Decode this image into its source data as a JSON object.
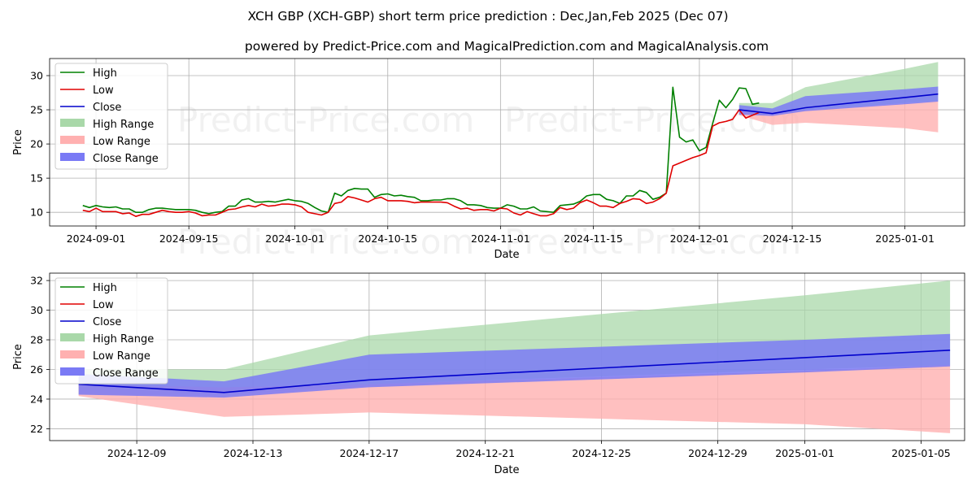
{
  "title": "XCH GBP (XCH-GBP) short term price prediction : Dec,Jan,Feb 2025 (Dec 07)",
  "subtitle": "powered by Predict-Price.com and MagicalPrediction.com and MagicalAnalysis.com",
  "watermark": "Predict-Price.com",
  "colors": {
    "high": "#008000",
    "low": "#e00000",
    "close": "#0000cc",
    "high_range": "#a9d8a9",
    "low_range": "#ffb0b0",
    "close_range": "#7a7af5",
    "grid": "#b0b0b0"
  },
  "legend": [
    "High",
    "Low",
    "Close",
    "High Range",
    "Low Range",
    "Close Range"
  ],
  "chart_data": [
    {
      "type": "line",
      "xlabel": "Date",
      "ylabel": "Price",
      "xlim": [
        "2024-08-25",
        "2025-01-10"
      ],
      "ylim": [
        8,
        32.5
      ],
      "yticks": [
        10,
        15,
        20,
        25,
        30
      ],
      "xticks": [
        {
          "date": "2024-09-01",
          "label": "2024-09-01"
        },
        {
          "date": "2024-09-15",
          "label": "2024-09-15"
        },
        {
          "date": "2024-10-01",
          "label": "2024-10-01"
        },
        {
          "date": "2024-10-15",
          "label": "2024-10-15"
        },
        {
          "date": "2024-11-01",
          "label": "2024-11-01"
        },
        {
          "date": "2024-11-15",
          "label": "2024-11-15"
        },
        {
          "date": "2024-12-01",
          "label": "2024-12-01"
        },
        {
          "date": "2024-12-15",
          "label": "2024-12-15"
        },
        {
          "date": "2025-01-01",
          "label": "2025-01-01"
        }
      ],
      "history_start": "2024-08-30",
      "high": [
        11.0,
        10.7,
        11.0,
        10.8,
        10.7,
        10.8,
        10.5,
        10.5,
        10.0,
        10.0,
        10.4,
        10.6,
        10.6,
        10.5,
        10.4,
        10.4,
        10.4,
        10.3,
        10.0,
        9.8,
        10.0,
        10.1,
        10.9,
        10.9,
        11.8,
        12.0,
        11.5,
        11.5,
        11.6,
        11.5,
        11.7,
        11.9,
        11.7,
        11.6,
        11.3,
        10.7,
        10.2,
        10.0,
        12.8,
        12.4,
        13.2,
        13.5,
        13.4,
        13.4,
        12.2,
        12.6,
        12.7,
        12.4,
        12.5,
        12.3,
        12.2,
        11.7,
        11.7,
        11.8,
        11.8,
        12.0,
        12.0,
        11.7,
        11.1,
        11.1,
        11.0,
        10.7,
        10.6,
        10.6,
        11.1,
        10.9,
        10.5,
        10.5,
        10.8,
        10.2,
        10.1,
        10.0,
        11.0,
        11.1,
        11.2,
        11.6,
        12.4,
        12.6,
        12.6,
        11.9,
        11.7,
        11.3,
        12.4,
        12.4,
        13.2,
        12.9,
        11.9,
        12.2,
        12.8,
        28.3,
        21.0,
        20.3,
        20.6,
        19.0,
        19.5,
        23.0,
        26.4,
        25.3,
        26.5,
        28.2,
        28.1,
        25.8,
        26.0
      ],
      "low": [
        10.3,
        10.1,
        10.6,
        10.1,
        10.1,
        10.1,
        9.8,
        9.9,
        9.4,
        9.7,
        9.7,
        10.0,
        10.3,
        10.1,
        10.0,
        10.0,
        10.1,
        9.9,
        9.5,
        9.6,
        9.6,
        10.0,
        10.4,
        10.5,
        10.8,
        11.0,
        10.8,
        11.2,
        10.9,
        11.0,
        11.2,
        11.2,
        11.1,
        10.8,
        10.0,
        9.8,
        9.6,
        10.0,
        11.3,
        11.5,
        12.3,
        12.1,
        11.8,
        11.5,
        12.0,
        12.2,
        11.7,
        11.7,
        11.7,
        11.6,
        11.4,
        11.5,
        11.5,
        11.5,
        11.5,
        11.4,
        10.9,
        10.5,
        10.6,
        10.3,
        10.4,
        10.4,
        10.2,
        10.6,
        10.5,
        9.9,
        9.6,
        10.1,
        9.8,
        9.5,
        9.5,
        9.8,
        10.7,
        10.4,
        10.6,
        11.4,
        11.8,
        11.4,
        10.9,
        10.9,
        10.7,
        11.3,
        11.6,
        12.0,
        11.9,
        11.3,
        11.5,
        12.0,
        12.8,
        16.8,
        17.2,
        17.6,
        18.0,
        18.3,
        18.7,
        22.6,
        23.1,
        23.3,
        23.6,
        25.0,
        23.8,
        24.2,
        24.6
      ],
      "forecast_dates": [
        "2024-12-07",
        "2024-12-12",
        "2024-12-17",
        "2025-01-01",
        "2025-01-06"
      ],
      "close_forecast": [
        25.0,
        24.45,
        25.3,
        26.8,
        27.3
      ],
      "high_range": {
        "upper": [
          26.0,
          26.0,
          28.3,
          31.0,
          32.0
        ],
        "lower": [
          24.3,
          24.3,
          25.0,
          26.0,
          26.3
        ]
      },
      "low_range": {
        "upper": [
          25.0,
          24.8,
          25.0,
          25.9,
          26.3
        ],
        "lower": [
          24.2,
          22.8,
          23.1,
          22.3,
          21.7
        ]
      },
      "close_range": {
        "upper": [
          25.7,
          25.2,
          27.0,
          28.0,
          28.4
        ],
        "lower": [
          24.3,
          24.1,
          24.8,
          25.8,
          26.2
        ]
      }
    },
    {
      "type": "line",
      "xlabel": "Date",
      "ylabel": "Price",
      "xlim": [
        "2024-12-06",
        "2025-01-06.5"
      ],
      "ylim": [
        21.2,
        32.5
      ],
      "yticks": [
        22,
        24,
        26,
        28,
        30,
        32
      ],
      "xticks": [
        {
          "date": "2024-12-09",
          "label": "2024-12-09"
        },
        {
          "date": "2024-12-13",
          "label": "2024-12-13"
        },
        {
          "date": "2024-12-17",
          "label": "2024-12-17"
        },
        {
          "date": "2024-12-21",
          "label": "2024-12-21"
        },
        {
          "date": "2024-12-25",
          "label": "2024-12-25"
        },
        {
          "date": "2024-12-29",
          "label": "2024-12-29"
        },
        {
          "date": "2025-01-01",
          "label": "2025-01-01"
        },
        {
          "date": "2025-01-05",
          "label": "2025-01-05"
        }
      ],
      "forecast_dates": [
        "2024-12-07",
        "2024-12-12",
        "2024-12-17",
        "2025-01-01",
        "2025-01-06"
      ],
      "close_forecast": [
        25.0,
        24.45,
        25.3,
        26.8,
        27.3
      ],
      "high_range": {
        "upper": [
          26.0,
          26.0,
          28.3,
          31.0,
          32.0
        ],
        "lower": [
          24.3,
          24.3,
          25.0,
          26.0,
          26.3
        ]
      },
      "low_range": {
        "upper": [
          25.0,
          24.8,
          25.0,
          25.9,
          26.3
        ],
        "lower": [
          24.2,
          22.8,
          23.1,
          22.3,
          21.7
        ]
      },
      "close_range": {
        "upper": [
          25.7,
          25.2,
          27.0,
          28.0,
          28.4
        ],
        "lower": [
          24.3,
          24.1,
          24.8,
          25.8,
          26.2
        ]
      }
    }
  ]
}
